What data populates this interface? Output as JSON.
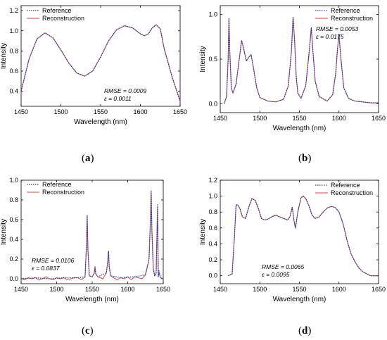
{
  "figure": {
    "legend_reference": "Reference",
    "legend_reconstruction": "Reconstruction",
    "colors": {
      "reference": "#2b3a9a",
      "reconstruction": "#c0504d"
    }
  },
  "chart_data": [
    {
      "panel": "a",
      "type": "line",
      "xlabel": "Wavelength (nm)",
      "ylabel": "Intensity",
      "xlim": [
        1450,
        1650
      ],
      "ylim": [
        0.25,
        1.25
      ],
      "xticks": [
        1450,
        1500,
        1550,
        1600,
        1650
      ],
      "yticks": [
        0.4,
        0.6,
        0.8,
        1.0,
        1.2
      ],
      "ytick_labels": [
        "0.4",
        "0.6",
        "0.8",
        "1.0",
        "1.2"
      ],
      "legend": "top-left",
      "annotation": [
        "RMSE = 0.0009",
        "ε = 0.0011"
      ],
      "series": [
        {
          "name": "Reference",
          "style": "dotted",
          "x": [
            1450,
            1460,
            1470,
            1480,
            1490,
            1500,
            1510,
            1520,
            1530,
            1540,
            1550,
            1560,
            1570,
            1580,
            1590,
            1600,
            1605,
            1610,
            1615,
            1620,
            1625,
            1630,
            1640,
            1650
          ],
          "y": [
            0.4,
            0.72,
            0.92,
            0.98,
            0.93,
            0.81,
            0.68,
            0.58,
            0.55,
            0.6,
            0.74,
            0.9,
            1.01,
            1.05,
            1.03,
            0.97,
            0.95,
            0.97,
            1.03,
            1.06,
            1.02,
            0.82,
            0.54,
            0.3
          ]
        },
        {
          "name": "Reconstruction",
          "style": "solid",
          "x": [
            1450,
            1460,
            1470,
            1480,
            1490,
            1500,
            1510,
            1520,
            1530,
            1540,
            1550,
            1560,
            1570,
            1580,
            1590,
            1600,
            1605,
            1610,
            1615,
            1620,
            1625,
            1630,
            1640,
            1650
          ],
          "y": [
            0.4,
            0.72,
            0.92,
            0.98,
            0.93,
            0.81,
            0.68,
            0.58,
            0.55,
            0.6,
            0.74,
            0.9,
            1.01,
            1.05,
            1.03,
            0.97,
            0.95,
            0.97,
            1.03,
            1.06,
            1.02,
            0.82,
            0.54,
            0.3
          ]
        }
      ]
    },
    {
      "panel": "b",
      "type": "line",
      "xlabel": "Wavelength (nm)",
      "ylabel": "Intensity",
      "xlim": [
        1450,
        1650
      ],
      "ylim": [
        -0.1,
        1.1
      ],
      "xticks": [
        1450,
        1500,
        1550,
        1600,
        1650
      ],
      "yticks": [
        0.0,
        0.5,
        1.0
      ],
      "ytick_labels": [
        "0.0",
        "0.5",
        "1.0"
      ],
      "legend": "top-right",
      "annotation": [
        "RMSE = 0.0053",
        "ε = 0.0175"
      ],
      "series": [
        {
          "name": "Reference",
          "style": "dotted",
          "x": [
            1455,
            1458,
            1460,
            1461,
            1462,
            1464,
            1466,
            1470,
            1474,
            1477,
            1480,
            1483,
            1486,
            1489,
            1492,
            1496,
            1500,
            1510,
            1520,
            1530,
            1536,
            1540,
            1542,
            1544,
            1546,
            1548,
            1552,
            1558,
            1562,
            1565,
            1567,
            1570,
            1575,
            1585,
            1592,
            1596,
            1598,
            1600,
            1602,
            1606,
            1612,
            1620,
            1630,
            1640,
            1650
          ],
          "y": [
            0.0,
            0.08,
            0.5,
            0.96,
            0.6,
            0.18,
            0.12,
            0.22,
            0.5,
            0.71,
            0.6,
            0.48,
            0.52,
            0.55,
            0.4,
            0.18,
            0.07,
            0.03,
            0.02,
            0.05,
            0.2,
            0.6,
            0.97,
            0.7,
            0.3,
            0.12,
            0.06,
            0.2,
            0.55,
            0.85,
            0.6,
            0.25,
            0.08,
            0.03,
            0.1,
            0.35,
            0.6,
            0.78,
            0.55,
            0.18,
            0.06,
            0.03,
            0.02,
            0.01,
            0.01
          ]
        },
        {
          "name": "Reconstruction",
          "style": "solid",
          "x": [
            1455,
            1458,
            1460,
            1461,
            1462,
            1464,
            1466,
            1470,
            1474,
            1477,
            1480,
            1483,
            1486,
            1489,
            1492,
            1496,
            1500,
            1510,
            1520,
            1530,
            1536,
            1540,
            1542,
            1544,
            1546,
            1548,
            1552,
            1558,
            1562,
            1565,
            1567,
            1570,
            1575,
            1585,
            1592,
            1596,
            1598,
            1600,
            1602,
            1606,
            1612,
            1620,
            1630,
            1640,
            1650
          ],
          "y": [
            0.0,
            0.08,
            0.5,
            0.96,
            0.6,
            0.18,
            0.12,
            0.22,
            0.5,
            0.71,
            0.6,
            0.48,
            0.52,
            0.55,
            0.4,
            0.18,
            0.07,
            0.03,
            0.02,
            0.05,
            0.2,
            0.6,
            0.97,
            0.7,
            0.3,
            0.12,
            0.06,
            0.2,
            0.55,
            0.85,
            0.6,
            0.25,
            0.08,
            0.03,
            0.1,
            0.35,
            0.6,
            0.78,
            0.55,
            0.18,
            0.06,
            0.03,
            0.02,
            0.01,
            0.01
          ]
        }
      ]
    },
    {
      "panel": "c",
      "type": "line",
      "xlabel": "Wavelength (nm)",
      "ylabel": "Intensity",
      "xlim": [
        1450,
        1650
      ],
      "ylim": [
        -0.05,
        1.0
      ],
      "xticks": [
        1450,
        1500,
        1550,
        1600,
        1650
      ],
      "yticks": [
        0.0,
        0.2,
        0.4,
        0.6,
        0.8,
        1.0
      ],
      "ytick_labels": [
        "0.0",
        "0.2",
        "0.4",
        "0.6",
        "0.8",
        "1.0"
      ],
      "legend": "top-left",
      "annotation": [
        "RMSE = 0.0106",
        "ε = 0.0837"
      ],
      "series": [
        {
          "name": "Reference",
          "style": "dotted",
          "x": [
            1450,
            1470,
            1490,
            1510,
            1530,
            1540,
            1542,
            1543,
            1544,
            1546,
            1550,
            1553,
            1554,
            1555,
            1558,
            1570,
            1572,
            1573,
            1574,
            1576,
            1590,
            1610,
            1625,
            1630,
            1632,
            1633,
            1634,
            1636,
            1638,
            1640,
            1641,
            1642,
            1643,
            1644,
            1646,
            1650
          ],
          "y": [
            0.0,
            0.01,
            0.0,
            0.01,
            0.01,
            0.02,
            0.35,
            0.64,
            0.3,
            0.03,
            0.02,
            0.06,
            0.12,
            0.05,
            0.02,
            0.06,
            0.18,
            0.28,
            0.12,
            0.03,
            0.01,
            0.02,
            0.04,
            0.2,
            0.6,
            0.89,
            0.5,
            0.1,
            0.03,
            0.05,
            0.4,
            0.75,
            0.02,
            0.08,
            0.01,
            0.0
          ]
        },
        {
          "name": "Reconstruction",
          "style": "solid",
          "x": [
            1450,
            1455,
            1460,
            1465,
            1470,
            1475,
            1480,
            1485,
            1490,
            1495,
            1500,
            1505,
            1510,
            1515,
            1520,
            1525,
            1530,
            1535,
            1540,
            1542,
            1543,
            1544,
            1546,
            1550,
            1553,
            1554,
            1555,
            1558,
            1565,
            1570,
            1572,
            1573,
            1574,
            1576,
            1580,
            1585,
            1590,
            1595,
            1600,
            1605,
            1610,
            1615,
            1620,
            1625,
            1630,
            1632,
            1633,
            1634,
            1636,
            1638,
            1640,
            1641,
            1642,
            1643,
            1644,
            1646,
            1650
          ],
          "y": [
            0.0,
            -0.01,
            0.01,
            0.0,
            0.01,
            -0.01,
            0.0,
            0.02,
            0.0,
            -0.01,
            0.01,
            0.0,
            0.01,
            -0.01,
            0.0,
            0.01,
            0.01,
            -0.01,
            0.02,
            0.35,
            0.64,
            0.3,
            0.03,
            0.02,
            0.06,
            0.12,
            0.05,
            0.02,
            0.0,
            0.06,
            0.18,
            0.28,
            0.12,
            0.03,
            0.01,
            -0.01,
            0.01,
            0.0,
            0.02,
            -0.01,
            0.02,
            0.01,
            0.0,
            0.04,
            0.2,
            0.6,
            0.89,
            0.5,
            0.1,
            0.03,
            0.05,
            0.4,
            0.7,
            0.02,
            0.06,
            0.01,
            0.0
          ]
        }
      ]
    },
    {
      "panel": "d",
      "type": "line",
      "xlabel": "Wavelength (nm)",
      "ylabel": "Intensity",
      "xlim": [
        1450,
        1650
      ],
      "ylim": [
        -0.1,
        1.2
      ],
      "xticks": [
        1450,
        1500,
        1550,
        1600,
        1650
      ],
      "yticks": [
        0.0,
        0.2,
        0.4,
        0.6,
        0.8,
        1.0,
        1.2
      ],
      "ytick_labels": [
        "0.0",
        "0.2",
        "0.4",
        "0.6",
        "0.8",
        "1.0",
        "1.2"
      ],
      "legend": "top-right",
      "annotation": [
        "RMSE = 0.0065",
        "ε = 0.0095"
      ],
      "series": [
        {
          "name": "Reference",
          "style": "dotted",
          "x": [
            1460,
            1465,
            1468,
            1470,
            1472,
            1475,
            1478,
            1482,
            1486,
            1490,
            1494,
            1498,
            1502,
            1506,
            1510,
            1515,
            1520,
            1525,
            1530,
            1535,
            1538,
            1541,
            1543,
            1545,
            1548,
            1552,
            1555,
            1558,
            1562,
            1566,
            1570,
            1575,
            1580,
            1585,
            1590,
            1595,
            1600,
            1605,
            1610,
            1615,
            1620,
            1625,
            1630,
            1640,
            1650
          ],
          "y": [
            0.0,
            0.02,
            0.5,
            0.89,
            0.89,
            0.84,
            0.74,
            0.72,
            0.86,
            0.97,
            0.95,
            0.85,
            0.72,
            0.7,
            0.71,
            0.74,
            0.76,
            0.74,
            0.72,
            0.7,
            0.74,
            0.86,
            0.7,
            0.6,
            0.8,
            0.98,
            1.0,
            0.97,
            0.88,
            0.76,
            0.72,
            0.74,
            0.8,
            0.85,
            0.87,
            0.86,
            0.8,
            0.66,
            0.45,
            0.28,
            0.18,
            0.1,
            0.05,
            0.0,
            0.0
          ]
        },
        {
          "name": "Reconstruction",
          "style": "solid",
          "x": [
            1460,
            1465,
            1468,
            1470,
            1472,
            1475,
            1478,
            1482,
            1486,
            1490,
            1494,
            1498,
            1502,
            1506,
            1510,
            1515,
            1520,
            1525,
            1530,
            1535,
            1538,
            1541,
            1543,
            1545,
            1548,
            1552,
            1555,
            1558,
            1562,
            1566,
            1570,
            1575,
            1580,
            1585,
            1590,
            1595,
            1600,
            1605,
            1610,
            1615,
            1620,
            1625,
            1630,
            1640,
            1650
          ],
          "y": [
            0.0,
            0.02,
            0.5,
            0.89,
            0.89,
            0.84,
            0.74,
            0.72,
            0.86,
            0.97,
            0.95,
            0.85,
            0.72,
            0.7,
            0.71,
            0.74,
            0.76,
            0.74,
            0.72,
            0.7,
            0.74,
            0.86,
            0.7,
            0.6,
            0.8,
            0.98,
            1.0,
            0.97,
            0.88,
            0.76,
            0.72,
            0.74,
            0.8,
            0.85,
            0.87,
            0.86,
            0.8,
            0.66,
            0.45,
            0.28,
            0.18,
            0.1,
            0.05,
            0.0,
            0.0
          ]
        }
      ]
    }
  ]
}
